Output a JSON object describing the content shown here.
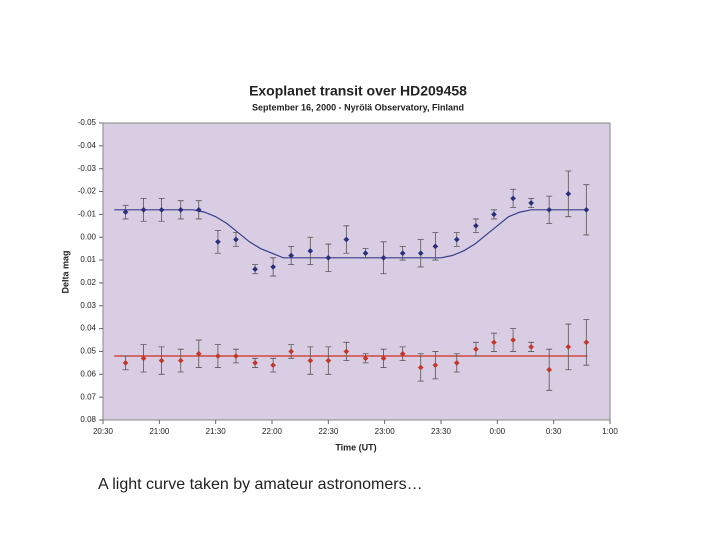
{
  "chart_data": {
    "type": "scatter",
    "title": "Exoplanet transit over HD209458",
    "subtitle": "September 16, 2000 - Nyrölä Observatory, Finland",
    "xlabel": "Time (UT)",
    "ylabel": "Delta mag",
    "caption": "A light curve taken by amateur astronomers…",
    "background": "#d8cde2",
    "xlim": [
      20.5,
      25.0
    ],
    "xticks": [
      {
        "value": 20.5,
        "label": "20:30"
      },
      {
        "value": 21.0,
        "label": "21:00"
      },
      {
        "value": 21.5,
        "label": "21:30"
      },
      {
        "value": 22.0,
        "label": "22:00"
      },
      {
        "value": 22.5,
        "label": "22:30"
      },
      {
        "value": 23.0,
        "label": "23:00"
      },
      {
        "value": 23.5,
        "label": "23:30"
      },
      {
        "value": 24.0,
        "label": "0:00"
      },
      {
        "value": 24.5,
        "label": "0:30"
      },
      {
        "value": 25.0,
        "label": "1:00"
      }
    ],
    "ylim": [
      -0.05,
      0.08
    ],
    "y_inverted": true,
    "yticks": [
      -0.05,
      -0.04,
      -0.03,
      -0.02,
      -0.01,
      {
        "value": 0,
        "label": "0.00"
      },
      0.01,
      0.02,
      0.03,
      0.04,
      0.05,
      0.06,
      0.07,
      0.08
    ],
    "series": [
      {
        "color": "#2a2f7a",
        "x": [
          20.7,
          20.86,
          21.02,
          21.19,
          21.35,
          21.52,
          21.68,
          21.85,
          22.01,
          22.17,
          22.34,
          22.5,
          22.66,
          22.83,
          22.99,
          23.16,
          23.32,
          23.45,
          23.64,
          23.81,
          23.97,
          24.14,
          24.3,
          24.46,
          24.63,
          24.79
        ],
        "values": [
          -0.011,
          -0.012,
          -0.012,
          -0.012,
          -0.012,
          0.002,
          0.001,
          0.014,
          0.013,
          0.008,
          0.006,
          0.009,
          0.001,
          0.007,
          0.009,
          0.007,
          0.007,
          0.004,
          0.001,
          -0.005,
          -0.01,
          -0.017,
          -0.015,
          -0.012,
          -0.019,
          -0.012
        ],
        "errors": [
          0.003,
          0.005,
          0.005,
          0.004,
          0.004,
          0.005,
          0.003,
          0.002,
          0.004,
          0.004,
          0.006,
          0.006,
          0.006,
          0.002,
          0.007,
          0.003,
          0.006,
          0.006,
          0.003,
          0.003,
          0.002,
          0.004,
          0.002,
          0.006,
          0.01,
          0.011
        ]
      },
      {
        "color": "#c0392b",
        "x": [
          20.7,
          20.86,
          21.02,
          21.19,
          21.35,
          21.52,
          21.68,
          21.85,
          22.01,
          22.17,
          22.34,
          22.5,
          22.66,
          22.83,
          22.99,
          23.16,
          23.32,
          23.45,
          23.64,
          23.81,
          23.97,
          24.14,
          24.3,
          24.46,
          24.63,
          24.79
        ],
        "values": [
          0.055,
          0.053,
          0.054,
          0.054,
          0.051,
          0.052,
          0.052,
          0.055,
          0.056,
          0.05,
          0.054,
          0.054,
          0.05,
          0.053,
          0.053,
          0.051,
          0.057,
          0.056,
          0.055,
          0.049,
          0.046,
          0.045,
          0.048,
          0.058,
          0.048,
          0.046
        ],
        "errors": [
          0.003,
          0.006,
          0.006,
          0.005,
          0.006,
          0.005,
          0.003,
          0.002,
          0.003,
          0.003,
          0.006,
          0.006,
          0.004,
          0.002,
          0.004,
          0.003,
          0.006,
          0.006,
          0.004,
          0.003,
          0.004,
          0.005,
          0.002,
          0.009,
          0.01,
          0.01
        ]
      }
    ],
    "fits": [
      {
        "color": "#3a3f8a",
        "x": [
          20.6,
          21.3,
          21.4,
          21.5,
          21.6,
          21.7,
          21.8,
          21.9,
          22.0,
          22.1,
          23.5,
          23.6,
          23.7,
          23.8,
          23.9,
          24.0,
          24.1,
          24.2,
          24.3,
          24.8
        ],
        "values": [
          -0.012,
          -0.012,
          -0.011,
          -0.009,
          -0.006,
          -0.002,
          0.002,
          0.005,
          0.007,
          0.009,
          0.009,
          0.008,
          0.006,
          0.003,
          -0.001,
          -0.005,
          -0.009,
          -0.011,
          -0.012,
          -0.012
        ]
      },
      {
        "color": "#d03020",
        "x": [
          20.6,
          24.8
        ],
        "values": [
          0.052,
          0.052
        ]
      }
    ]
  }
}
